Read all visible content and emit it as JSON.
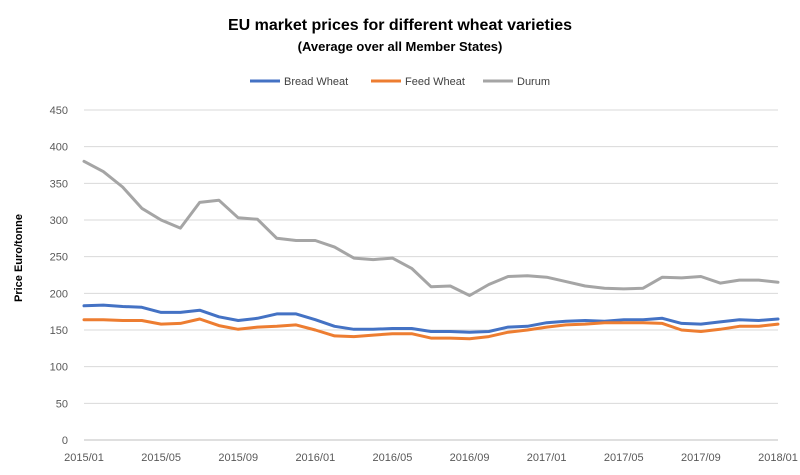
{
  "chart_data": {
    "type": "line",
    "title": "EU market prices for different wheat varieties",
    "subtitle": "(Average over all Member States)",
    "ylabel": "Price Euro/tonne",
    "xlabel": "",
    "ylim": [
      0,
      450
    ],
    "y_ticks": [
      "0",
      "50",
      "100",
      "150",
      "200",
      "250",
      "300",
      "350",
      "400",
      "450"
    ],
    "x_tick_labels": [
      "2015/01",
      "2015/05",
      "2015/09",
      "2016/01",
      "2016/05",
      "2016/09",
      "2017/01",
      "2017/05",
      "2017/09",
      "2018/01"
    ],
    "grid": "horizontal",
    "legend_position": "top",
    "x": [
      "2015/01",
      "2015/02",
      "2015/03",
      "2015/04",
      "2015/05",
      "2015/06",
      "2015/07",
      "2015/08",
      "2015/09",
      "2015/10",
      "2015/11",
      "2015/12",
      "2016/01",
      "2016/02",
      "2016/03",
      "2016/04",
      "2016/05",
      "2016/06",
      "2016/07",
      "2016/08",
      "2016/09",
      "2016/10",
      "2016/11",
      "2016/12",
      "2017/01",
      "2017/02",
      "2017/03",
      "2017/04",
      "2017/05",
      "2017/06",
      "2017/07",
      "2017/08",
      "2017/09",
      "2017/10",
      "2017/11",
      "2017/12",
      "2018/01"
    ],
    "series": [
      {
        "name": "Bread Wheat",
        "color": "#4472C4",
        "values": [
          183,
          184,
          182,
          181,
          174,
          174,
          177,
          168,
          163,
          166,
          172,
          172,
          164,
          155,
          151,
          151,
          152,
          152,
          148,
          148,
          147,
          148,
          154,
          155,
          160,
          162,
          163,
          162,
          164,
          164,
          166,
          159,
          158,
          161,
          164,
          163,
          165
        ]
      },
      {
        "name": "Feed Wheat",
        "color": "#ED7D31",
        "values": [
          164,
          164,
          163,
          163,
          158,
          159,
          165,
          156,
          151,
          154,
          155,
          157,
          150,
          142,
          141,
          143,
          145,
          145,
          139,
          139,
          138,
          141,
          147,
          150,
          154,
          157,
          158,
          160,
          160,
          160,
          159,
          150,
          148,
          151,
          155,
          155,
          158
        ]
      },
      {
        "name": "Durum",
        "color": "#A5A5A5",
        "values": [
          380,
          366,
          345,
          316,
          300,
          289,
          324,
          327,
          303,
          301,
          275,
          272,
          272,
          263,
          248,
          246,
          248,
          234,
          209,
          210,
          197,
          212,
          223,
          224,
          222,
          216,
          210,
          207,
          206,
          207,
          222,
          221,
          223,
          214,
          218,
          218,
          215
        ]
      }
    ]
  }
}
